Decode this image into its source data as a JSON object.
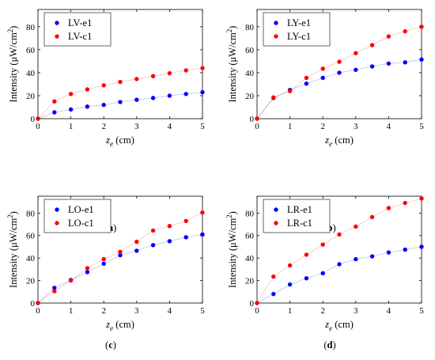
{
  "chart_data": [
    {
      "type": "scatter",
      "caption_letter": "a",
      "xlabel_sym": "z",
      "xlabel_sub": "e",
      "xlabel_unit": " (cm)",
      "ylabel_prefix": "Intensity (μW/cm",
      "ylabel_sup": "2",
      "ylabel_suffix": ")",
      "xlim": [
        0,
        5
      ],
      "ylim": [
        0,
        95
      ],
      "xticks": [
        0,
        1,
        2,
        3,
        4,
        5
      ],
      "yticks": [
        0,
        20,
        40,
        60,
        80
      ],
      "legend_position": "top-left",
      "series": [
        {
          "name": "LV-e1",
          "color": "#0000ff",
          "x": [
            0,
            0.5,
            1,
            1.5,
            2,
            2.5,
            3,
            3.5,
            4,
            4.5,
            5
          ],
          "y": [
            0,
            5.5,
            8,
            10.5,
            12,
            14.5,
            16.5,
            18,
            20,
            21.5,
            23
          ]
        },
        {
          "name": "LV-c1",
          "color": "#ff0000",
          "x": [
            0,
            0.5,
            1,
            1.5,
            2,
            2.5,
            3,
            3.5,
            4,
            4.5,
            5
          ],
          "y": [
            0,
            15,
            21.5,
            25.5,
            29,
            32,
            34.5,
            37,
            39.5,
            42,
            44
          ]
        }
      ]
    },
    {
      "type": "scatter",
      "caption_letter": "b",
      "xlabel_sym": "z",
      "xlabel_sub": "e",
      "xlabel_unit": " (cm)",
      "ylabel_prefix": "Intensity (μW/cm",
      "ylabel_sup": "2",
      "ylabel_suffix": ")",
      "xlim": [
        0,
        5
      ],
      "ylim": [
        0,
        95
      ],
      "xticks": [
        0,
        1,
        2,
        3,
        4,
        5
      ],
      "yticks": [
        0,
        20,
        40,
        60,
        80
      ],
      "legend_position": "top-left",
      "series": [
        {
          "name": "LY-e1",
          "color": "#0000ff",
          "x": [
            0,
            0.5,
            1,
            1.5,
            2,
            2.5,
            3,
            3.5,
            4,
            4.5,
            5
          ],
          "y": [
            0,
            18,
            25,
            30.5,
            35.5,
            40,
            42.5,
            45.5,
            48,
            49,
            51.5
          ]
        },
        {
          "name": "LY-c1",
          "color": "#ff0000",
          "x": [
            0,
            0.5,
            1,
            1.5,
            2,
            2.5,
            3,
            3.5,
            4,
            4.5,
            5
          ],
          "y": [
            0,
            18.5,
            24,
            35.5,
            43.5,
            49.5,
            57,
            64,
            71.5,
            76,
            80
          ]
        }
      ]
    },
    {
      "type": "scatter",
      "caption_letter": "c",
      "xlabel_sym": "z",
      "xlabel_sub": "e",
      "xlabel_unit": " (cm)",
      "ylabel_prefix": "Intensity (μW/cm",
      "ylabel_sup": "2",
      "ylabel_suffix": ")",
      "xlim": [
        0,
        5
      ],
      "ylim": [
        0,
        95
      ],
      "xticks": [
        0,
        1,
        2,
        3,
        4,
        5
      ],
      "yticks": [
        0,
        20,
        40,
        60,
        80
      ],
      "legend_position": "top-left",
      "series": [
        {
          "name": "LO-e1",
          "color": "#0000ff",
          "x": [
            0,
            0.5,
            1,
            1.5,
            2,
            2.5,
            3,
            3.5,
            4,
            4.5,
            5
          ],
          "y": [
            0,
            13.5,
            20.5,
            27.5,
            35,
            42.5,
            46.5,
            51.5,
            55,
            58.5,
            61
          ]
        },
        {
          "name": "LO-c1",
          "color": "#ff0000",
          "x": [
            0,
            0.5,
            1,
            1.5,
            2,
            2.5,
            3,
            3.5,
            4,
            4.5,
            5
          ],
          "y": [
            0,
            10.5,
            20,
            31,
            39,
            45.5,
            54.5,
            64.5,
            68.5,
            73,
            80.5
          ]
        }
      ]
    },
    {
      "type": "scatter",
      "caption_letter": "d",
      "xlabel_sym": "z",
      "xlabel_sub": "e",
      "xlabel_unit": " (cm)",
      "ylabel_prefix": "Intensity (μW/cm",
      "ylabel_sup": "2",
      "ylabel_suffix": ")",
      "xlim": [
        0,
        5
      ],
      "ylim": [
        0,
        95
      ],
      "xticks": [
        0,
        1,
        2,
        3,
        4,
        5
      ],
      "yticks": [
        0,
        20,
        40,
        60,
        80
      ],
      "legend_position": "top-left",
      "series": [
        {
          "name": "LR-e1",
          "color": "#0000ff",
          "x": [
            0,
            0.5,
            1,
            1.5,
            2,
            2.5,
            3,
            3.5,
            4,
            4.5,
            5
          ],
          "y": [
            0,
            8,
            16.5,
            22,
            26.5,
            34.5,
            39,
            41.5,
            45,
            47.5,
            50
          ]
        },
        {
          "name": "LR-c1",
          "color": "#ff0000",
          "x": [
            0,
            0.5,
            1,
            1.5,
            2,
            2.5,
            3,
            3.5,
            4,
            4.5,
            5
          ],
          "y": [
            0,
            23.5,
            33.5,
            43,
            52,
            61,
            68,
            76.5,
            84.5,
            89,
            93
          ]
        }
      ]
    }
  ]
}
